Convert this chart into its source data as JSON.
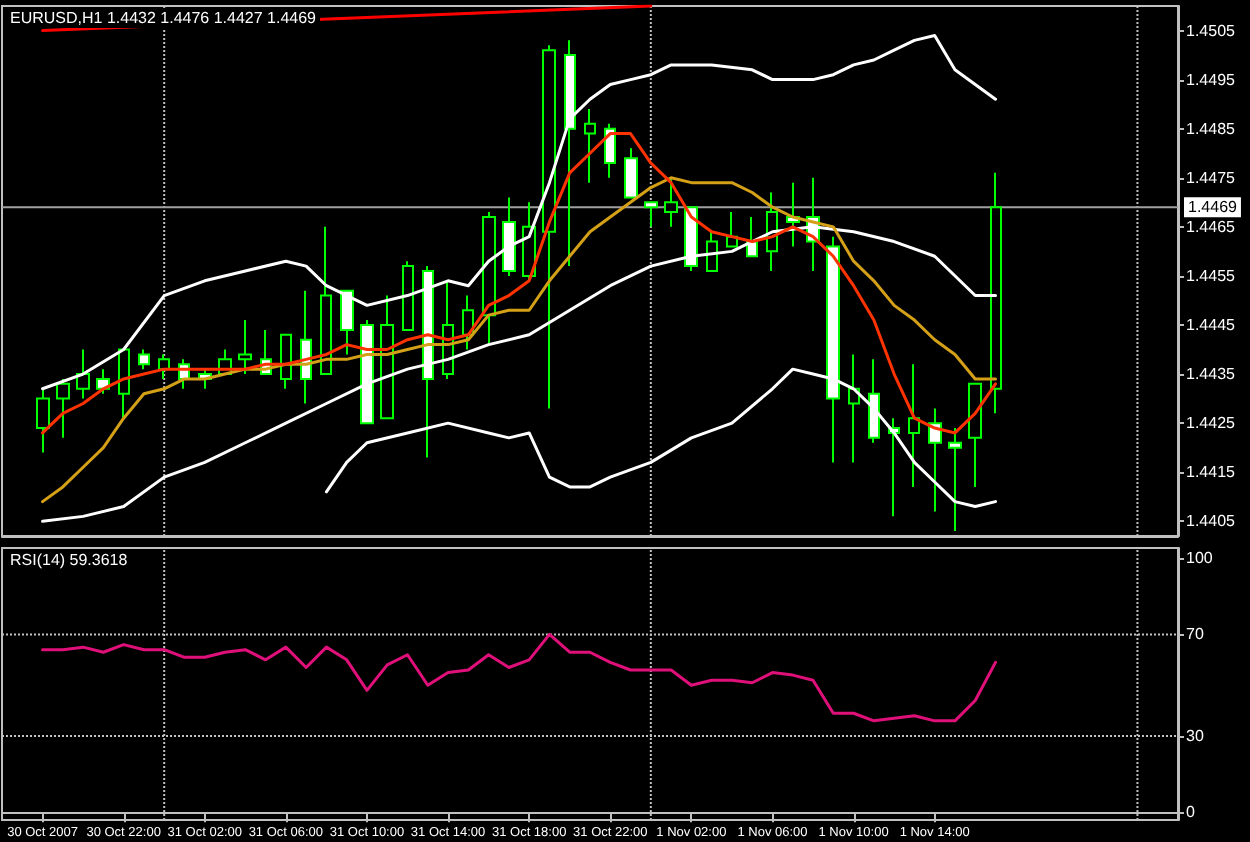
{
  "chart_data": [
    {
      "type": "candlestick",
      "title": "EURUSD,H1 1.4432 1.4476 1.4427 1.4469",
      "x": [
        "2007-10-30T18:00",
        "2007-10-30T19:00",
        "2007-10-30T20:00",
        "2007-10-30T21:00",
        "2007-10-30T22:00",
        "2007-10-30T23:00",
        "2007-10-31T00:00",
        "2007-10-31T01:00",
        "2007-10-31T02:00",
        "2007-10-31T03:00",
        "2007-10-31T04:00",
        "2007-10-31T05:00",
        "2007-10-31T06:00",
        "2007-10-31T07:00",
        "2007-10-31T08:00",
        "2007-10-31T09:00",
        "2007-10-31T10:00",
        "2007-10-31T11:00",
        "2007-10-31T12:00",
        "2007-10-31T13:00",
        "2007-10-31T14:00",
        "2007-10-31T15:00",
        "2007-10-31T16:00",
        "2007-10-31T17:00",
        "2007-10-31T18:00",
        "2007-10-31T19:00",
        "2007-10-31T20:00",
        "2007-10-31T21:00",
        "2007-10-31T22:00",
        "2007-10-31T23:00",
        "2007-11-01T00:00",
        "2007-11-01T01:00",
        "2007-11-01T02:00",
        "2007-11-01T03:00",
        "2007-11-01T04:00",
        "2007-11-01T05:00",
        "2007-11-01T06:00",
        "2007-11-01T07:00",
        "2007-11-01T08:00",
        "2007-11-01T09:00",
        "2007-11-01T10:00",
        "2007-11-01T11:00",
        "2007-11-01T12:00",
        "2007-11-01T13:00",
        "2007-11-01T14:00",
        "2007-11-01T15:00",
        "2007-11-01T16:00",
        "2007-11-01T17:00"
      ],
      "xlim": [
        "2007-10-30T16:00",
        "2007-11-02T02:00"
      ],
      "ylim": [
        1.4402,
        1.451
      ],
      "yticks": [
        1.4405,
        1.4415,
        1.4425,
        1.4435,
        1.4445,
        1.4455,
        1.4465,
        1.4475,
        1.4485,
        1.4495,
        1.4505
      ],
      "tick_labels": "y",
      "grid": false,
      "series": [
        {
          "type": "line",
          "color": "#ff0000",
          "x": [
            "2007-10-30T18:00",
            "2007-11-01T00:00"
          ],
          "values": [
            1.4505,
            1.451
          ]
        },
        {
          "type": "line",
          "color": "#ffffff",
          "x": [
            "2007-10-30T18:00",
            "2007-10-30T20:00",
            "2007-10-30T22:00",
            "2007-10-31T00:00",
            "2007-10-31T02:00",
            "2007-10-31T04:00",
            "2007-10-31T06:00",
            "2007-10-31T07:00",
            "2007-10-31T08:00",
            "2007-10-31T10:00",
            "2007-10-31T12:00",
            "2007-10-31T14:00",
            "2007-10-31T15:00",
            "2007-10-31T16:00",
            "2007-10-31T17:00",
            "2007-10-31T18:00",
            "2007-10-31T19:00",
            "2007-10-31T20:00",
            "2007-10-31T21:00",
            "2007-10-31T22:00",
            "2007-10-31T23:00",
            "2007-11-01T00:00",
            "2007-11-01T01:00",
            "2007-11-01T03:00",
            "2007-11-01T05:00",
            "2007-11-01T06:00",
            "2007-11-01T08:00",
            "2007-11-01T09:00",
            "2007-11-01T10:00",
            "2007-11-01T11:00",
            "2007-11-01T12:00",
            "2007-11-01T13:00",
            "2007-11-01T14:00",
            "2007-11-01T15:00",
            "2007-11-01T16:00",
            "2007-11-01T17:00"
          ],
          "values": [
            1.4432,
            1.4435,
            1.444,
            1.4451,
            1.4454,
            1.4456,
            1.4458,
            1.4457,
            1.4453,
            1.4449,
            1.4451,
            1.4454,
            1.4453,
            1.4458,
            1.4461,
            1.4463,
            1.4474,
            1.4487,
            1.4491,
            1.4494,
            1.4495,
            1.4496,
            1.4498,
            1.4498,
            1.4497,
            1.4495,
            1.4495,
            1.4496,
            1.4498,
            1.4499,
            1.4501,
            1.4503,
            1.4504,
            1.4497,
            1.4494,
            1.4491
          ]
        },
        {
          "type": "line",
          "color": "#ffffff",
          "x": [
            "2007-10-30T18:00",
            "2007-10-30T20:00",
            "2007-10-30T22:00",
            "2007-10-31T00:00",
            "2007-10-31T02:00",
            "2007-10-31T04:00",
            "2007-10-31T06:00",
            "2007-10-31T08:00",
            "2007-10-31T10:00",
            "2007-10-31T12:00",
            "2007-10-31T14:00",
            "2007-10-31T16:00",
            "2007-10-31T18:00",
            "2007-10-31T20:00",
            "2007-10-31T22:00",
            "2007-11-01T00:00",
            "2007-11-01T02:00",
            "2007-11-01T04:00",
            "2007-11-01T06:00",
            "2007-11-01T08:00",
            "2007-11-01T10:00",
            "2007-11-01T12:00",
            "2007-11-01T14:00",
            "2007-11-01T16:00",
            "2007-11-01T17:00"
          ],
          "values": [
            1.4405,
            1.4406,
            1.4408,
            1.4414,
            1.4417,
            1.4421,
            1.4425,
            1.4429,
            1.4433,
            1.4436,
            1.4438,
            1.4441,
            1.4443,
            1.4448,
            1.4453,
            1.4457,
            1.4459,
            1.446,
            1.4464,
            1.4465,
            1.4464,
            1.4462,
            1.4459,
            1.4451,
            1.4451
          ]
        },
        {
          "type": "line",
          "color": "#ffffff",
          "x": [
            "2007-10-31T08:00",
            "2007-10-31T09:00",
            "2007-10-31T10:00",
            "2007-10-31T12:00",
            "2007-10-31T14:00",
            "2007-10-31T16:00",
            "2007-10-31T17:00",
            "2007-10-31T18:00",
            "2007-10-31T19:00",
            "2007-10-31T20:00",
            "2007-10-31T21:00",
            "2007-10-31T22:00",
            "2007-11-01T00:00",
            "2007-11-01T02:00",
            "2007-11-01T04:00",
            "2007-11-01T06:00",
            "2007-11-01T07:00",
            "2007-11-01T08:00",
            "2007-11-01T09:00",
            "2007-11-01T10:00",
            "2007-11-01T11:00",
            "2007-11-01T12:00",
            "2007-11-01T13:00",
            "2007-11-01T14:00",
            "2007-11-01T15:00",
            "2007-11-01T16:00",
            "2007-11-01T17:00"
          ],
          "values": [
            1.4411,
            1.4417,
            1.4421,
            1.4423,
            1.4425,
            1.4423,
            1.4422,
            1.4423,
            1.4414,
            1.4412,
            1.4412,
            1.4414,
            1.4417,
            1.4422,
            1.4425,
            1.4432,
            1.4436,
            1.4435,
            1.4434,
            1.4432,
            1.4428,
            1.4423,
            1.4417,
            1.4413,
            1.4409,
            1.4408,
            1.4409
          ]
        },
        {
          "type": "line",
          "color": "#d4a017",
          "values": [
            1.4409,
            1.4412,
            1.4416,
            1.442,
            1.4426,
            1.4431,
            1.4432,
            1.4434,
            1.4434,
            1.4435,
            1.4436,
            1.4436,
            1.4437,
            1.4437,
            1.4438,
            1.4438,
            1.4439,
            1.4439,
            1.444,
            1.4441,
            1.4441,
            1.4442,
            1.4447,
            1.4448,
            1.4448,
            1.4454,
            1.4459,
            1.4464,
            1.4467,
            1.447,
            1.4473,
            1.4475,
            1.4474,
            1.4474,
            1.4474,
            1.4472,
            1.4469,
            1.4467,
            1.4466,
            1.4465,
            1.4458,
            1.4454,
            1.4449,
            1.4446,
            1.4442,
            1.4439,
            1.4434,
            1.4434
          ]
        },
        {
          "type": "line",
          "color": "#ff3300",
          "values": [
            1.4423,
            1.4427,
            1.4429,
            1.4432,
            1.4434,
            1.4435,
            1.4436,
            1.4436,
            1.4436,
            1.4436,
            1.4436,
            1.4437,
            1.4437,
            1.4438,
            1.4439,
            1.4441,
            1.444,
            1.444,
            1.4442,
            1.4443,
            1.4442,
            1.4443,
            1.4449,
            1.4451,
            1.4454,
            1.4466,
            1.4476,
            1.448,
            1.4484,
            1.4484,
            1.4478,
            1.4474,
            1.4467,
            1.4464,
            1.4463,
            1.4462,
            1.4463,
            1.4465,
            1.4463,
            1.4459,
            1.4453,
            1.4446,
            1.4435,
            1.4426,
            1.4424,
            1.4423,
            1.4427,
            1.4433
          ]
        },
        {
          "color": "#00ff00",
          "ohlc": [
            [
              1.4424,
              1.4432,
              1.4419,
              1.443
            ],
            [
              1.443,
              1.4434,
              1.4422,
              1.4433
            ],
            [
              1.4432,
              1.444,
              1.443,
              1.4435
            ],
            [
              1.4434,
              1.4436,
              1.4431,
              1.4432
            ],
            [
              1.4431,
              1.444,
              1.4426,
              1.444
            ],
            [
              1.4439,
              1.444,
              1.4436,
              1.4437
            ],
            [
              1.4436,
              1.4439,
              1.4434,
              1.4438
            ],
            [
              1.4437,
              1.4438,
              1.4432,
              1.4434
            ],
            [
              1.4435,
              1.4436,
              1.4432,
              1.4434
            ],
            [
              1.4435,
              1.444,
              1.4435,
              1.4438
            ],
            [
              1.4438,
              1.4446,
              1.4435,
              1.4439
            ],
            [
              1.4438,
              1.4444,
              1.4435,
              1.4435
            ],
            [
              1.4434,
              1.4443,
              1.4432,
              1.4443
            ],
            [
              1.4442,
              1.4452,
              1.4429,
              1.4434
            ],
            [
              1.4435,
              1.4465,
              1.4435,
              1.4451
            ],
            [
              1.4452,
              1.4452,
              1.4439,
              1.4444
            ],
            [
              1.4445,
              1.4446,
              1.4425,
              1.4425
            ],
            [
              1.4426,
              1.4451,
              1.4426,
              1.4445
            ],
            [
              1.4444,
              1.4458,
              1.4444,
              1.4457
            ],
            [
              1.4456,
              1.4457,
              1.4418,
              1.4434
            ],
            [
              1.4435,
              1.4454,
              1.4434,
              1.4445
            ],
            [
              1.4443,
              1.4451,
              1.444,
              1.4448
            ],
            [
              1.4447,
              1.4468,
              1.4441,
              1.4467
            ],
            [
              1.4466,
              1.4471,
              1.4455,
              1.4456
            ],
            [
              1.4455,
              1.447,
              1.4454,
              1.4465
            ],
            [
              1.4464,
              1.4502,
              1.4428,
              1.4501
            ],
            [
              1.45,
              1.4503,
              1.4457,
              1.4485
            ],
            [
              1.4484,
              1.4489,
              1.4474,
              1.4486
            ],
            [
              1.4485,
              1.4486,
              1.4475,
              1.4478
            ],
            [
              1.4479,
              1.4481,
              1.4471,
              1.4471
            ],
            [
              1.447,
              1.447,
              1.4465,
              1.4469
            ],
            [
              1.4468,
              1.4475,
              1.4465,
              1.447
            ],
            [
              1.4469,
              1.4469,
              1.4456,
              1.4457
            ],
            [
              1.4456,
              1.4464,
              1.4456,
              1.4462
            ],
            [
              1.4461,
              1.4468,
              1.4461,
              1.4463
            ],
            [
              1.4462,
              1.4467,
              1.4459,
              1.4459
            ],
            [
              1.446,
              1.4472,
              1.4456,
              1.4468
            ],
            [
              1.4467,
              1.4474,
              1.4461,
              1.4466
            ],
            [
              1.4467,
              1.4475,
              1.4456,
              1.4462
            ],
            [
              1.4461,
              1.4463,
              1.4417,
              1.443
            ],
            [
              1.4429,
              1.4439,
              1.4417,
              1.4432
            ],
            [
              1.4431,
              1.4438,
              1.4421,
              1.4422
            ],
            [
              1.4424,
              1.4426,
              1.4406,
              1.4423
            ],
            [
              1.4423,
              1.4437,
              1.4412,
              1.4426
            ],
            [
              1.4425,
              1.4428,
              1.4407,
              1.4421
            ],
            [
              1.4421,
              1.4424,
              1.4403,
              1.442
            ],
            [
              1.4422,
              1.4433,
              1.4412,
              1.4433
            ],
            [
              1.4432,
              1.4476,
              1.4427,
              1.4469
            ]
          ],
          "colors": [
            "#000000",
            "#000000",
            "#000000",
            "#ffffff",
            "#000000",
            "#ffffff",
            "#000000",
            "#ffffff",
            "#ffffff",
            "#000000",
            "#000000",
            "#ffffff",
            "#000000",
            "#ffffff",
            "#000000",
            "#ffffff",
            "#ffffff",
            "#000000",
            "#000000",
            "#ffffff",
            "#000000",
            "#000000",
            "#000000",
            "#ffffff",
            "#000000",
            "#000000",
            "#ffffff",
            "#000000",
            "#ffffff",
            "#ffffff",
            "#ffffff",
            "#000000",
            "#ffffff",
            "#000000",
            "#000000",
            "#ffffff",
            "#000000",
            "#ffffff",
            "#ffffff",
            "#ffffff",
            "#000000",
            "#ffffff",
            "#ffffff",
            "#000000",
            "#ffffff",
            "#ffffff",
            "#000000",
            "#000000"
          ]
        }
      ],
      "ref_lines": [
        {
          "axis": "y",
          "value": 1.4469,
          "label": "1.4469",
          "color": "#a0a0a0",
          "line_style": "solid"
        },
        {
          "axis": "x",
          "value": "2007-10-31T00:00",
          "color": "#c0c0c0",
          "line_style": "dotted"
        },
        {
          "axis": "x",
          "value": "2007-11-01T00:00",
          "color": "#c0c0c0",
          "line_style": "dotted"
        },
        {
          "axis": "x",
          "value": "2007-11-02T00:00",
          "color": "#c0c0c0",
          "line_style": "dotted"
        }
      ]
    },
    {
      "type": "line",
      "title": "RSI(14) 59.3618",
      "x": [
        "2007-10-30T18:00",
        "2007-10-30T19:00",
        "2007-10-30T20:00",
        "2007-10-30T21:00",
        "2007-10-30T22:00",
        "2007-10-30T23:00",
        "2007-10-31T00:00",
        "2007-10-31T01:00",
        "2007-10-31T02:00",
        "2007-10-31T03:00",
        "2007-10-31T04:00",
        "2007-10-31T05:00",
        "2007-10-31T06:00",
        "2007-10-31T07:00",
        "2007-10-31T08:00",
        "2007-10-31T09:00",
        "2007-10-31T10:00",
        "2007-10-31T11:00",
        "2007-10-31T12:00",
        "2007-10-31T13:00",
        "2007-10-31T14:00",
        "2007-10-31T15:00",
        "2007-10-31T16:00",
        "2007-10-31T17:00",
        "2007-10-31T18:00",
        "2007-10-31T19:00",
        "2007-10-31T20:00",
        "2007-10-31T21:00",
        "2007-10-31T22:00",
        "2007-10-31T23:00",
        "2007-11-01T00:00",
        "2007-11-01T01:00",
        "2007-11-01T02:00",
        "2007-11-01T03:00",
        "2007-11-01T04:00",
        "2007-11-01T05:00",
        "2007-11-01T06:00",
        "2007-11-01T07:00",
        "2007-11-01T08:00",
        "2007-11-01T09:00",
        "2007-11-01T10:00",
        "2007-11-01T11:00",
        "2007-11-01T12:00",
        "2007-11-01T13:00",
        "2007-11-01T14:00",
        "2007-11-01T15:00",
        "2007-11-01T16:00",
        "2007-11-01T17:00"
      ],
      "xlim": [
        "2007-10-30T16:00",
        "2007-11-02T02:00"
      ],
      "xticks": [
        {
          "value": "2007-10-30T18:00",
          "label": "30 Oct 2007"
        },
        {
          "value": "2007-10-30T22:00",
          "label": "30 Oct 22:00"
        },
        {
          "value": "2007-10-31T02:00",
          "label": "31 Oct 02:00"
        },
        {
          "value": "2007-10-31T06:00",
          "label": "31 Oct 06:00"
        },
        {
          "value": "2007-10-31T10:00",
          "label": "31 Oct 10:00"
        },
        {
          "value": "2007-10-31T14:00",
          "label": "31 Oct 14:00"
        },
        {
          "value": "2007-10-31T18:00",
          "label": "31 Oct 18:00"
        },
        {
          "value": "2007-10-31T22:00",
          "label": "31 Oct 22:00"
        },
        {
          "value": "2007-11-01T02:00",
          "label": "1 Nov 02:00"
        },
        {
          "value": "2007-11-01T06:00",
          "label": "1 Nov 06:00"
        },
        {
          "value": "2007-11-01T10:00",
          "label": "1 Nov 10:00"
        },
        {
          "value": "2007-11-01T14:00",
          "label": "1 Nov 14:00"
        }
      ],
      "ylim": [
        -3,
        104
      ],
      "yticks": [
        0,
        30,
        70,
        100
      ],
      "grid": false,
      "marker": "none",
      "series": [
        {
          "color": "#e0107a",
          "values": [
            64,
            64,
            65,
            63,
            66,
            64,
            64,
            61,
            61,
            63,
            64,
            60,
            65,
            57,
            65,
            60,
            48,
            58,
            62,
            50,
            55,
            56,
            62,
            57,
            60,
            70,
            63,
            63,
            59,
            56,
            56,
            56,
            50,
            52,
            52,
            51,
            55,
            54,
            52,
            39,
            39,
            36,
            37,
            38,
            36,
            36,
            44,
            59
          ]
        }
      ],
      "ref_lines": [
        {
          "axis": "y",
          "value": 70,
          "color": "#c0c0c0",
          "line_style": "dotted"
        },
        {
          "axis": "y",
          "value": 30,
          "color": "#c0c0c0",
          "line_style": "dotted"
        },
        {
          "axis": "x",
          "value": "2007-10-31T00:00",
          "color": "#c0c0c0",
          "line_style": "dotted"
        },
        {
          "axis": "x",
          "value": "2007-11-01T00:00",
          "color": "#c0c0c0",
          "line_style": "dotted"
        },
        {
          "axis": "x",
          "value": "2007-11-02T00:00",
          "color": "#c0c0c0",
          "line_style": "dotted"
        }
      ]
    }
  ]
}
